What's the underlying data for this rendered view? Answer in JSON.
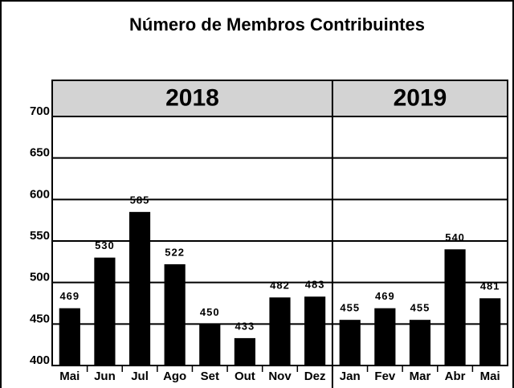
{
  "chart_data": {
    "type": "bar",
    "title": "Número de Membros Contribuintes",
    "groups": [
      {
        "name": "2018",
        "categories": [
          "Mai",
          "Jun",
          "Jul",
          "Ago",
          "Set",
          "Out",
          "Nov",
          "Dez"
        ]
      },
      {
        "name": "2019",
        "categories": [
          "Jan",
          "Fev",
          "Mar",
          "Abr",
          "Mai"
        ]
      }
    ],
    "values": [
      469,
      530,
      585,
      522,
      450,
      433,
      482,
      483,
      455,
      469,
      455,
      540,
      481
    ],
    "color": "#000000",
    "ylim": [
      400,
      700
    ],
    "yticks": [
      400,
      450,
      500,
      550,
      600,
      650,
      700
    ],
    "grid": true
  }
}
